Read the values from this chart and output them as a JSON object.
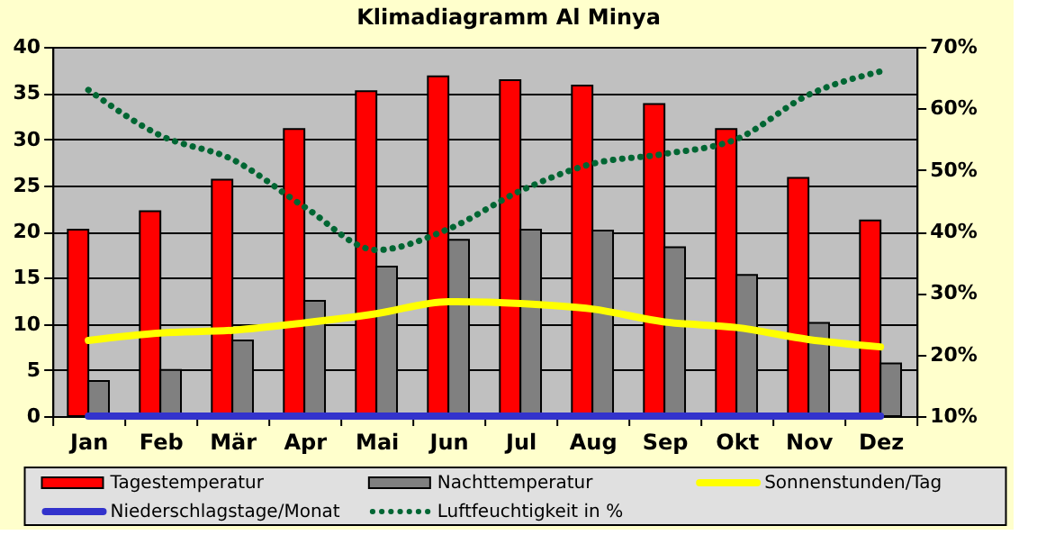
{
  "chart_data": {
    "type": "bar",
    "title": "Klimadiagramm Al Minya",
    "categories": [
      "Jan",
      "Feb",
      "Mär",
      "Apr",
      "Mai",
      "Jun",
      "Jul",
      "Aug",
      "Sep",
      "Okt",
      "Nov",
      "Dez"
    ],
    "series": [
      {
        "name": "Tagestemperatur",
        "type": "bar",
        "color": "#ff0000",
        "values": [
          20.2,
          22.2,
          25.6,
          31.1,
          35.2,
          36.8,
          36.4,
          35.8,
          33.8,
          31.1,
          25.8,
          21.2
        ]
      },
      {
        "name": "Nachttemperatur",
        "type": "bar",
        "color": "#808080",
        "values": [
          3.8,
          5.0,
          8.2,
          12.5,
          16.2,
          19.1,
          20.2,
          20.1,
          18.3,
          15.3,
          10.1,
          5.7
        ]
      },
      {
        "name": "Sonnenstunden/Tag",
        "type": "line",
        "color": "#ffff00",
        "line_style": "solid",
        "values": [
          8.2,
          9.0,
          9.3,
          10.1,
          11.1,
          12.4,
          12.2,
          11.6,
          10.2,
          9.6,
          8.3,
          7.5
        ]
      },
      {
        "name": "Niederschlagstage/Monat",
        "type": "line",
        "color": "#3333cc",
        "line_style": "solid",
        "values": [
          0,
          0,
          0,
          0,
          0,
          0,
          0,
          0,
          0,
          0,
          0,
          0
        ]
      },
      {
        "name": "Luftfeuchtigkeit in %",
        "type": "line",
        "color": "#006633",
        "line_style": "dotted",
        "axis": "y2",
        "values": [
          63,
          55.6,
          51.7,
          44,
          37,
          40.4,
          46.6,
          51,
          52.6,
          55,
          62.2,
          66
        ]
      }
    ],
    "ylim": [
      0,
      40
    ],
    "yticks": [
      0,
      5,
      10,
      15,
      20,
      25,
      30,
      35,
      40
    ],
    "y2lim": [
      10,
      70
    ],
    "y2ticks": [
      {
        "value": 10,
        "label": "10%"
      },
      {
        "value": 20,
        "label": "20%"
      },
      {
        "value": 30,
        "label": "30%"
      },
      {
        "value": 40,
        "label": "40%"
      },
      {
        "value": 50,
        "label": "50%"
      },
      {
        "value": 60,
        "label": "60%"
      },
      {
        "value": 70,
        "label": "70%"
      }
    ],
    "grid": "y",
    "legend": "bottom"
  }
}
